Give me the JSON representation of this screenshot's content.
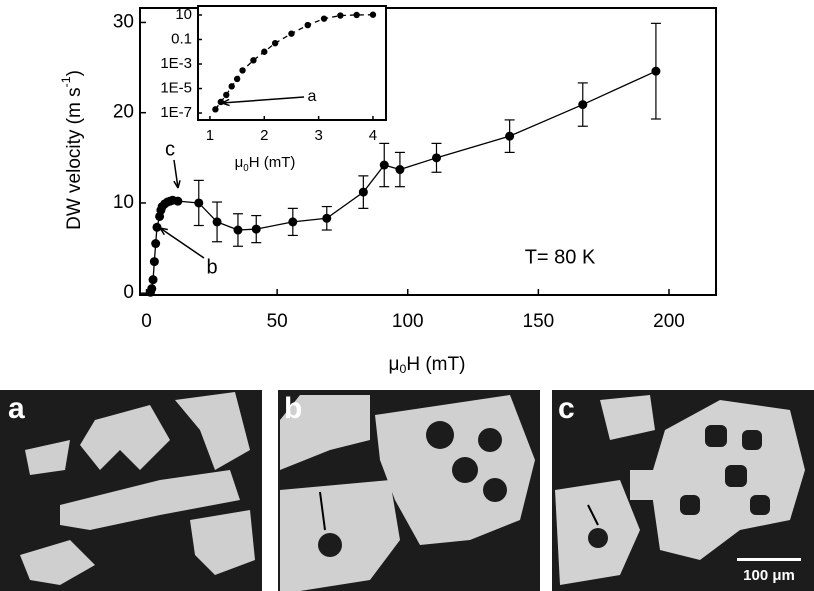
{
  "chart_data": [
    {
      "type": "line",
      "xlabel": {
        "pre": "μ",
        "sub": "0",
        "post": "H (mT)"
      },
      "ylabel": {
        "pre": "DW velocity (m s",
        "sup": "-1",
        "post": ")"
      },
      "xlim": [
        -2.5,
        218
      ],
      "ylim": [
        -0.2,
        31.6
      ],
      "xticks": [
        0,
        50,
        100,
        150,
        200
      ],
      "yticks": [
        0,
        10,
        20,
        30
      ],
      "series": [
        {
          "color": "#000000",
          "x": [
            1.5,
            2,
            2.5,
            3,
            3.5,
            4,
            5,
            5.5,
            6,
            7,
            8,
            9,
            10,
            12,
            20,
            27,
            35,
            42,
            56,
            69,
            83,
            91,
            97,
            111,
            139,
            167,
            195
          ],
          "values": [
            0.1,
            0.5,
            1.5,
            3.5,
            5.5,
            7.3,
            8.5,
            9.2,
            9.6,
            9.9,
            10.1,
            10.2,
            10.3,
            10.2,
            10,
            7.9,
            7,
            7.1,
            7.9,
            8.3,
            11.2,
            14.2,
            13.7,
            15,
            17.4,
            20.9,
            24.6
          ],
          "errors": [
            null,
            null,
            null,
            null,
            null,
            null,
            null,
            null,
            null,
            null,
            null,
            null,
            null,
            null,
            2.5,
            2.2,
            1.8,
            1.5,
            1.5,
            1.3,
            1.8,
            2.4,
            1.9,
            1.6,
            1.8,
            2.4,
            5.3
          ]
        }
      ],
      "annotations": [
        "c",
        "b",
        "T= 80 K"
      ]
    },
    {
      "type": "line",
      "log_y": true,
      "xlabel": {
        "pre": "μ",
        "sub": "0",
        "post": "H (mT)"
      },
      "xlim": [
        0.78,
        4.24
      ],
      "ylim": [
        2.7e-08,
        54
      ],
      "xticks": [
        1,
        2,
        3,
        4
      ],
      "yticks": [
        {
          "value": 1e-07,
          "label": "1E-7"
        },
        {
          "value": 1e-05,
          "label": "1E-5"
        },
        {
          "value": 0.001,
          "label": "1E-3"
        },
        0.1,
        10
      ],
      "series": [
        {
          "color": "#000000",
          "line_style": "dashed",
          "x": [
            1.1,
            1.2,
            1.3,
            1.4,
            1.5,
            1.6,
            1.8,
            2.0,
            2.2,
            2.5,
            2.8,
            3.1,
            3.4,
            3.7,
            4.0
          ],
          "values": [
            2e-07,
            8e-07,
            3e-06,
            1.5e-05,
            6e-05,
            0.0003,
            0.002,
            0.01,
            0.05,
            0.3,
            1.5,
            5,
            9,
            10,
            10.5
          ]
        }
      ],
      "annotations": [
        "a"
      ]
    }
  ],
  "panels": {
    "labels": [
      "a",
      "b",
      "c"
    ],
    "scale_bar": "100 μm"
  }
}
